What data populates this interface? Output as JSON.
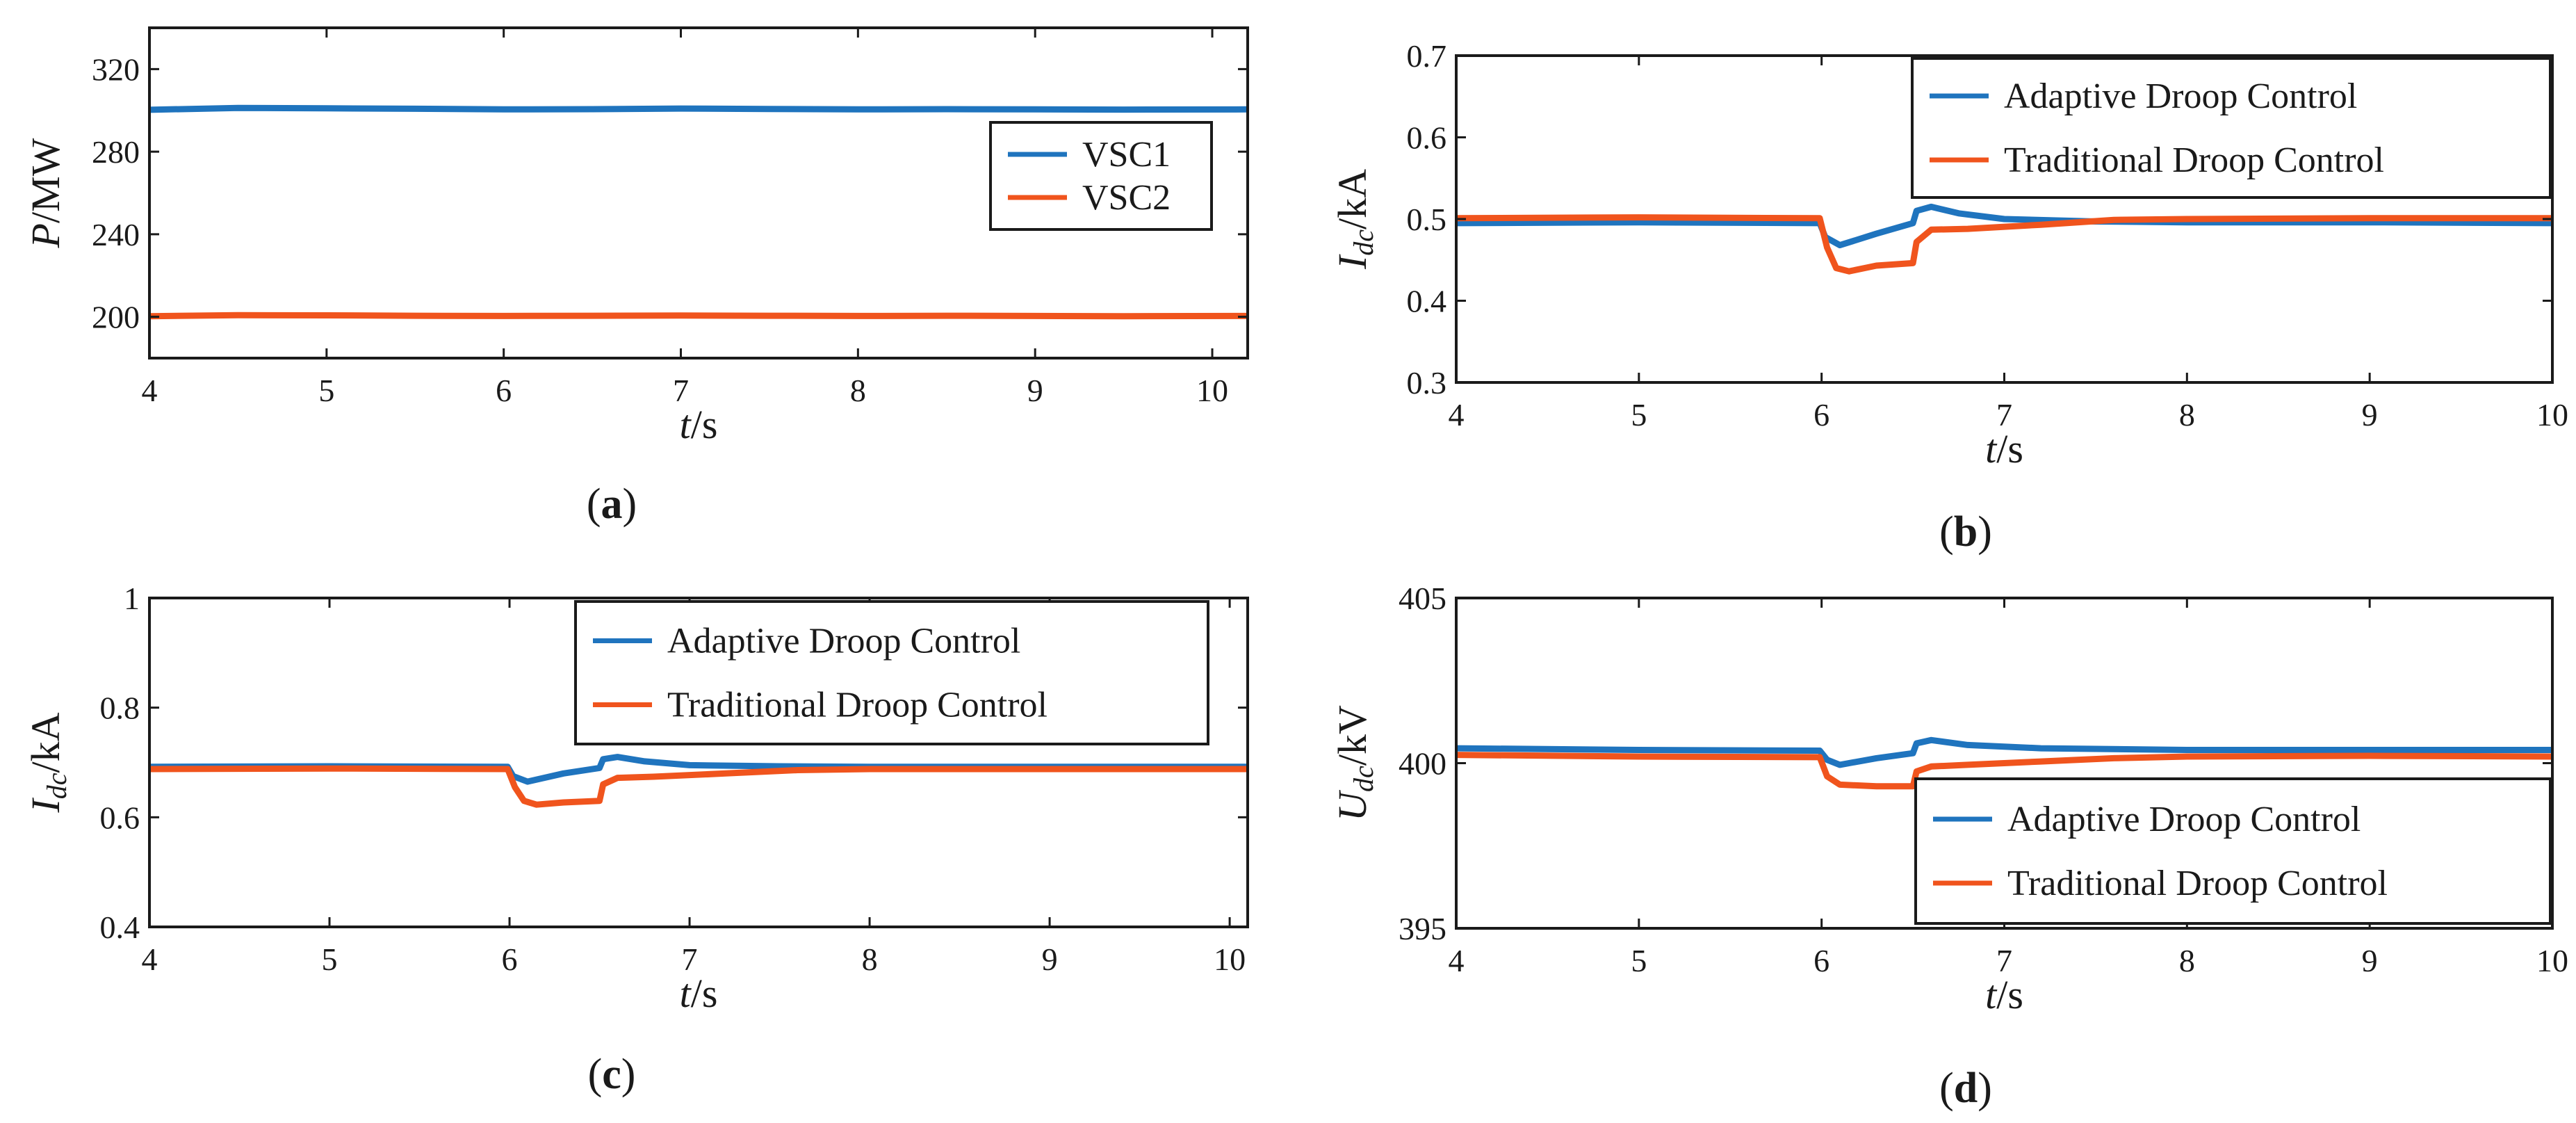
{
  "colors": {
    "adaptive": "#1f74be",
    "traditional": "#f0541d",
    "axis": "#1a1a1a"
  },
  "chart_data": [
    {
      "panel": "a",
      "caption": "(a)",
      "type": "line",
      "title": "",
      "xlabel_italic": "t",
      "xlabel_rest": "/s",
      "ylabel_italic": "P",
      "ylabel_sub": "",
      "ylabel_rest": "/MW",
      "xlim": [
        4,
        10.2
      ],
      "ylim": [
        180,
        340
      ],
      "xticks": [
        4,
        5,
        6,
        7,
        8,
        9,
        10
      ],
      "yticks": [
        200,
        240,
        280,
        320
      ],
      "legend_position": "upper-right",
      "series": [
        {
          "name": "VSC1",
          "color": "#1f74be",
          "points": [
            [
              4.0,
              300.3
            ],
            [
              4.5,
              301.2
            ],
            [
              5.0,
              301.0
            ],
            [
              5.5,
              300.8
            ],
            [
              6.0,
              300.5
            ],
            [
              6.5,
              300.6
            ],
            [
              7.0,
              300.9
            ],
            [
              7.5,
              300.7
            ],
            [
              8.0,
              300.5
            ],
            [
              8.5,
              300.6
            ],
            [
              9.0,
              300.5
            ],
            [
              9.5,
              300.4
            ],
            [
              10.2,
              300.5
            ]
          ]
        },
        {
          "name": "VSC2",
          "color": "#f0541d",
          "points": [
            [
              4.0,
              200.3
            ],
            [
              4.5,
              200.8
            ],
            [
              5.0,
              200.7
            ],
            [
              5.5,
              200.5
            ],
            [
              6.0,
              200.4
            ],
            [
              6.5,
              200.5
            ],
            [
              7.0,
              200.6
            ],
            [
              7.5,
              200.5
            ],
            [
              8.0,
              200.4
            ],
            [
              8.5,
              200.5
            ],
            [
              9.0,
              200.4
            ],
            [
              9.5,
              200.3
            ],
            [
              10.2,
              200.4
            ]
          ]
        }
      ]
    },
    {
      "panel": "b",
      "caption": "(b)",
      "type": "line",
      "title": "",
      "xlabel_italic": "t",
      "xlabel_rest": "/s",
      "ylabel_italic": "I",
      "ylabel_sub": "dc",
      "ylabel_rest": "/kA",
      "xlim": [
        4,
        10
      ],
      "ylim": [
        0.3,
        0.7
      ],
      "xticks": [
        4,
        5,
        6,
        7,
        8,
        9,
        10
      ],
      "yticks": [
        0.3,
        0.4,
        0.5,
        0.6,
        0.7
      ],
      "legend_position": "top-right",
      "series": [
        {
          "name": "Adaptive Droop Control",
          "color": "#1f74be",
          "points": [
            [
              4.0,
              0.495
            ],
            [
              5.0,
              0.496
            ],
            [
              5.99,
              0.495
            ],
            [
              6.02,
              0.478
            ],
            [
              6.1,
              0.468
            ],
            [
              6.3,
              0.482
            ],
            [
              6.5,
              0.495
            ],
            [
              6.52,
              0.51
            ],
            [
              6.6,
              0.515
            ],
            [
              6.75,
              0.507
            ],
            [
              7.0,
              0.5
            ],
            [
              7.5,
              0.497
            ],
            [
              8.0,
              0.496
            ],
            [
              9.0,
              0.496
            ],
            [
              10.0,
              0.495
            ]
          ]
        },
        {
          "name": "Traditional Droop Control",
          "color": "#f0541d",
          "points": [
            [
              4.0,
              0.501
            ],
            [
              5.0,
              0.502
            ],
            [
              5.99,
              0.501
            ],
            [
              6.03,
              0.465
            ],
            [
              6.08,
              0.44
            ],
            [
              6.15,
              0.436
            ],
            [
              6.3,
              0.443
            ],
            [
              6.5,
              0.446
            ],
            [
              6.52,
              0.472
            ],
            [
              6.6,
              0.487
            ],
            [
              6.8,
              0.488
            ],
            [
              7.2,
              0.493
            ],
            [
              7.6,
              0.499
            ],
            [
              8.0,
              0.5
            ],
            [
              9.0,
              0.501
            ],
            [
              10.0,
              0.501
            ]
          ]
        }
      ]
    },
    {
      "panel": "c",
      "caption": "(c)",
      "type": "line",
      "title": "",
      "xlabel_italic": "t",
      "xlabel_rest": "/s",
      "ylabel_italic": "I",
      "ylabel_sub": "dc",
      "ylabel_rest": "/kA",
      "xlim": [
        4,
        10.1
      ],
      "ylim": [
        0.4,
        1.0
      ],
      "xticks": [
        4,
        5,
        6,
        7,
        8,
        9,
        10
      ],
      "yticks": [
        0.4,
        0.6,
        0.8,
        1
      ],
      "legend_position": "top-right",
      "series": [
        {
          "name": "Adaptive Droop Control",
          "color": "#1f74be",
          "points": [
            [
              4.0,
              0.692
            ],
            [
              5.0,
              0.693
            ],
            [
              5.99,
              0.692
            ],
            [
              6.02,
              0.675
            ],
            [
              6.1,
              0.665
            ],
            [
              6.3,
              0.68
            ],
            [
              6.5,
              0.69
            ],
            [
              6.52,
              0.706
            ],
            [
              6.6,
              0.71
            ],
            [
              6.75,
              0.702
            ],
            [
              7.0,
              0.695
            ],
            [
              7.5,
              0.693
            ],
            [
              8.0,
              0.692
            ],
            [
              9.0,
              0.692
            ],
            [
              10.1,
              0.692
            ]
          ]
        },
        {
          "name": "Traditional Droop Control",
          "color": "#f0541d",
          "points": [
            [
              4.0,
              0.688
            ],
            [
              5.0,
              0.689
            ],
            [
              5.99,
              0.688
            ],
            [
              6.03,
              0.655
            ],
            [
              6.08,
              0.63
            ],
            [
              6.15,
              0.623
            ],
            [
              6.3,
              0.627
            ],
            [
              6.5,
              0.63
            ],
            [
              6.52,
              0.66
            ],
            [
              6.6,
              0.672
            ],
            [
              6.8,
              0.674
            ],
            [
              7.2,
              0.68
            ],
            [
              7.6,
              0.686
            ],
            [
              8.0,
              0.688
            ],
            [
              9.0,
              0.688
            ],
            [
              10.1,
              0.688
            ]
          ]
        }
      ]
    },
    {
      "panel": "d",
      "caption": "(d)",
      "type": "line",
      "title": "",
      "xlabel_italic": "t",
      "xlabel_rest": "/s",
      "ylabel_italic": "U",
      "ylabel_sub": "dc",
      "ylabel_rest": "/kV",
      "xlim": [
        4,
        10
      ],
      "ylim": [
        395,
        405
      ],
      "xticks": [
        4,
        5,
        6,
        7,
        8,
        9,
        10
      ],
      "yticks": [
        395,
        400,
        405
      ],
      "legend_position": "bottom-right",
      "series": [
        {
          "name": "Adaptive Droop Control",
          "color": "#1f74be",
          "points": [
            [
              4.0,
              400.45
            ],
            [
              5.0,
              400.4
            ],
            [
              5.99,
              400.38
            ],
            [
              6.03,
              400.1
            ],
            [
              6.1,
              399.95
            ],
            [
              6.3,
              400.15
            ],
            [
              6.5,
              400.3
            ],
            [
              6.52,
              400.6
            ],
            [
              6.6,
              400.7
            ],
            [
              6.8,
              400.55
            ],
            [
              7.2,
              400.45
            ],
            [
              8.0,
              400.4
            ],
            [
              9.0,
              400.4
            ],
            [
              10.0,
              400.4
            ]
          ]
        },
        {
          "name": "Traditional Droop Control",
          "color": "#f0541d",
          "points": [
            [
              4.0,
              400.25
            ],
            [
              5.0,
              400.2
            ],
            [
              5.99,
              400.18
            ],
            [
              6.03,
              399.6
            ],
            [
              6.1,
              399.35
            ],
            [
              6.3,
              399.3
            ],
            [
              6.5,
              399.3
            ],
            [
              6.52,
              399.75
            ],
            [
              6.6,
              399.9
            ],
            [
              6.8,
              399.95
            ],
            [
              7.2,
              400.05
            ],
            [
              7.6,
              400.15
            ],
            [
              8.0,
              400.2
            ],
            [
              9.0,
              400.22
            ],
            [
              10.0,
              400.2
            ]
          ]
        }
      ]
    }
  ]
}
